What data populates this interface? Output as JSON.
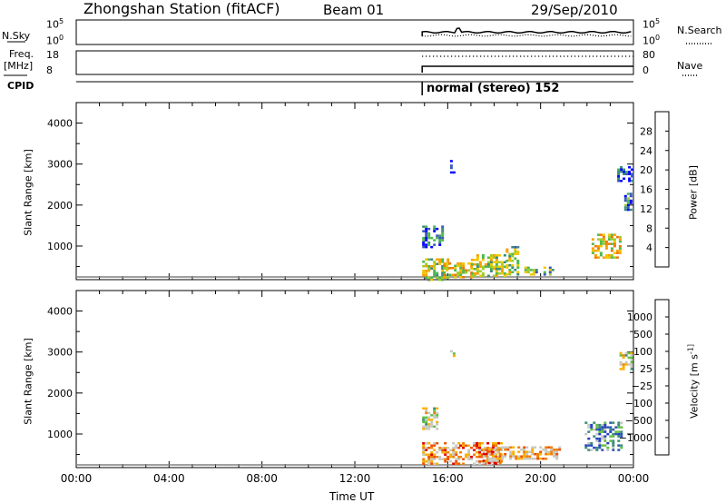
{
  "header": {
    "title": "Zhongshan Station (fitACF)",
    "beam": "Beam 01",
    "date": "29/Sep/2010"
  },
  "summary": {
    "nsky_label": "N.Sky",
    "nsearch_label": "N.Search",
    "noise_ticks": [
      "10^5",
      "10^0"
    ],
    "noise_right_ticks": [
      "10^5",
      "10^0"
    ],
    "freq_label": "Freq.",
    "freq_unit": "[MHz]",
    "freq_ticks": [
      "18",
      "8"
    ],
    "nave_label": "Nave",
    "nave_ticks": [
      "80",
      "0"
    ],
    "cpid_label": "CPID",
    "cpid_value": "normal (stereo) 152"
  },
  "chart_data": [
    {
      "type": "heatmap",
      "name": "power",
      "ylabel": "Slant Range [km]",
      "yticks": [
        1000,
        2000,
        3000,
        4000
      ],
      "ylim": [
        180,
        4500
      ],
      "xlim": [
        0,
        24
      ],
      "colorbar": {
        "label": "Power [dB]",
        "ticks": [
          "28",
          "24",
          "20",
          "16",
          "12",
          "8",
          "4"
        ],
        "colors": [
          "#0000ff",
          "#3858b8",
          "#3c8c78",
          "#4cb84c",
          "#9ccc2c",
          "#f0c800",
          "#f8a000",
          "#f07800",
          "#e84800",
          "#e00000"
        ]
      },
      "echo_regions": [
        {
          "t0": 14.9,
          "t1": 16.0,
          "r0": 200,
          "r1": 700,
          "level": 0.45
        },
        {
          "t0": 14.9,
          "t1": 15.8,
          "r0": 1000,
          "r1": 1500,
          "level": 0.15
        },
        {
          "t0": 15.8,
          "t1": 17.0,
          "r0": 250,
          "r1": 600,
          "level": 0.55
        },
        {
          "t0": 16.1,
          "t1": 16.3,
          "r0": 2800,
          "r1": 3100,
          "level": 0.1
        },
        {
          "t0": 17.0,
          "t1": 18.5,
          "r0": 300,
          "r1": 800,
          "level": 0.45
        },
        {
          "t0": 18.5,
          "t1": 19.0,
          "r0": 300,
          "r1": 1000,
          "level": 0.4
        },
        {
          "t0": 19.3,
          "t1": 20.5,
          "r0": 300,
          "r1": 500,
          "level": 0.35
        },
        {
          "t0": 22.2,
          "t1": 23.4,
          "r0": 700,
          "r1": 1300,
          "level": 0.55
        },
        {
          "t0": 23.3,
          "t1": 23.9,
          "r0": 2600,
          "r1": 2950,
          "level": 0.1
        },
        {
          "t0": 23.6,
          "t1": 23.9,
          "r0": 1900,
          "r1": 2300,
          "level": 0.2
        }
      ]
    },
    {
      "type": "heatmap",
      "name": "velocity",
      "ylabel": "Slant Range [km]",
      "xlabel": "Time UT",
      "yticks": [
        1000,
        2000,
        3000,
        4000
      ],
      "ylim": [
        180,
        4500
      ],
      "xlim": [
        0,
        24
      ],
      "xticks": [
        "00:00",
        "04:00",
        "08:00",
        "12:00",
        "16:00",
        "20:00",
        "00:00"
      ],
      "colorbar": {
        "label": "Velocity [m s^-1]",
        "ticks": [
          "1000",
          "500",
          "100",
          "25",
          "−25",
          "−100",
          "−500",
          "−1000"
        ],
        "colors": [
          "#e00000",
          "#f05000",
          "#f08000",
          "#f8b000",
          "#c8c8c0",
          "#c8c8c0",
          "#60c040",
          "#3c8c78",
          "#3058b0",
          "#2040c0"
        ]
      },
      "echo_regions": [
        {
          "t0": 14.9,
          "t1": 15.6,
          "r0": 1100,
          "r1": 1650,
          "level": 0.5
        },
        {
          "t0": 14.9,
          "t1": 16.5,
          "r0": 250,
          "r1": 800,
          "level": 0.3
        },
        {
          "t0": 16.1,
          "t1": 16.3,
          "r0": 2850,
          "r1": 3100,
          "level": 0.5
        },
        {
          "t0": 16.5,
          "t1": 18.3,
          "r0": 300,
          "r1": 800,
          "level": 0.25
        },
        {
          "t0": 17.5,
          "t1": 18.3,
          "r0": 300,
          "r1": 650,
          "level": 0.3
        },
        {
          "t0": 18.3,
          "t1": 20.8,
          "r0": 400,
          "r1": 700,
          "level": 0.35
        },
        {
          "t0": 21.9,
          "t1": 23.5,
          "r0": 600,
          "r1": 1300,
          "level": 0.75
        },
        {
          "t0": 23.4,
          "t1": 23.9,
          "r0": 2600,
          "r1": 3000,
          "level": 0.5
        }
      ]
    }
  ]
}
